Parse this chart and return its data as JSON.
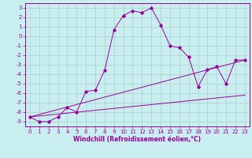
{
  "xlabel": "Windchill (Refroidissement éolien,°C)",
  "xlim": [
    -0.5,
    23.5
  ],
  "ylim": [
    -9.5,
    3.5
  ],
  "yticks": [
    3,
    2,
    1,
    0,
    -1,
    -2,
    -3,
    -4,
    -5,
    -6,
    -7,
    -8,
    -9
  ],
  "xticks": [
    0,
    1,
    2,
    3,
    4,
    5,
    6,
    7,
    8,
    9,
    10,
    11,
    12,
    13,
    14,
    15,
    16,
    17,
    18,
    19,
    20,
    21,
    22,
    23
  ],
  "bg_color": "#c8eef0",
  "line_color": "#990099",
  "grid_color": "#aacccc",
  "main_x": [
    0,
    1,
    2,
    3,
    4,
    5,
    6,
    7,
    8,
    9,
    10,
    11,
    12,
    13,
    14,
    15,
    16,
    17,
    18,
    19,
    20,
    21,
    22,
    23
  ],
  "main_y": [
    -8.5,
    -9.0,
    -9.0,
    -8.5,
    -7.5,
    -8.0,
    -5.8,
    -5.7,
    -3.6,
    0.7,
    2.2,
    2.7,
    2.5,
    3.0,
    1.2,
    -1.0,
    -1.2,
    -2.2,
    -5.3,
    -3.5,
    -3.2,
    -5.0,
    -2.5,
    -2.5
  ],
  "line2_x": [
    0,
    23
  ],
  "line2_y": [
    -8.5,
    -2.5
  ],
  "line3_x": [
    0,
    23
  ],
  "line3_y": [
    -8.5,
    -6.2
  ],
  "tick_fontsize": 5,
  "xlabel_fontsize": 5.5,
  "lw": 0.7,
  "ms": 1.8
}
